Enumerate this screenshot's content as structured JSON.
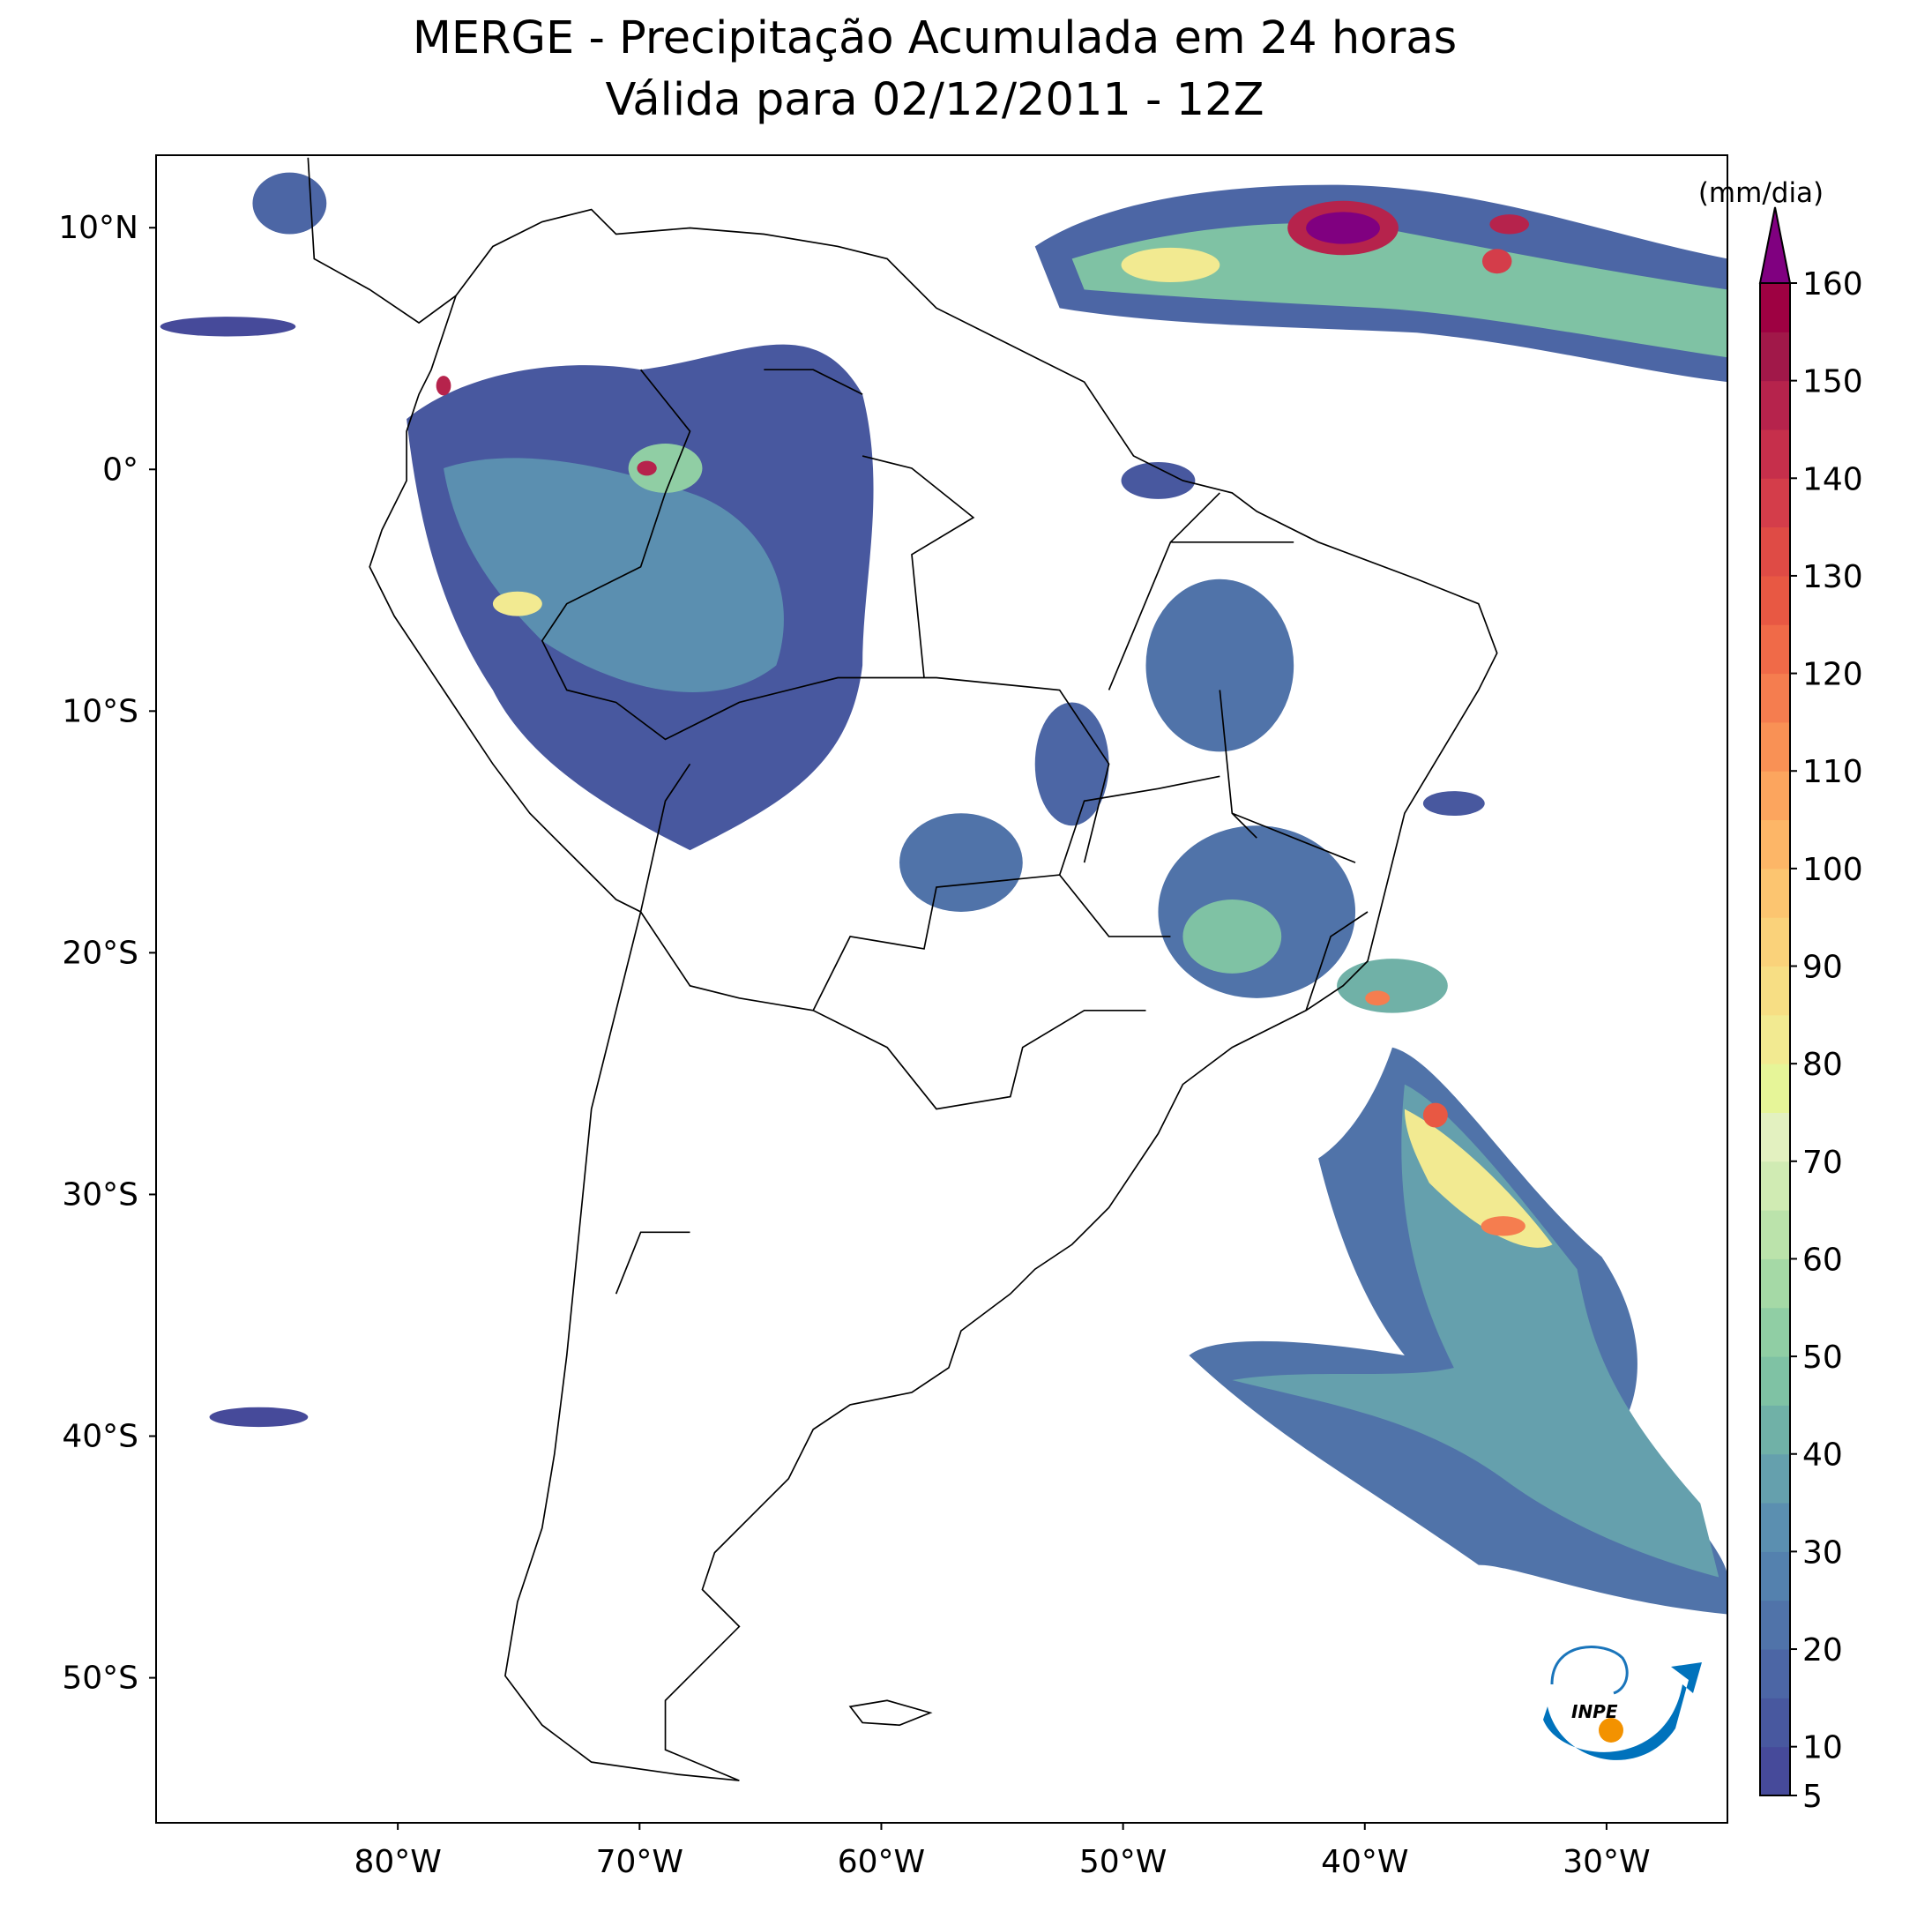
{
  "map": {
    "title": "MERGE - Precipitação Acumulada em 24 horas",
    "subtitle": "Válida para 02/12/2011 - 12Z",
    "lonlim": [
      -90,
      -25
    ],
    "latlim": [
      -56,
      13
    ],
    "lon_ticks": [
      {
        "value": -80,
        "label": "80°W"
      },
      {
        "value": -70,
        "label": "70°W"
      },
      {
        "value": -60,
        "label": "60°W"
      },
      {
        "value": -50,
        "label": "50°W"
      },
      {
        "value": -40,
        "label": "40°W"
      },
      {
        "value": -30,
        "label": "30°W"
      }
    ],
    "lat_ticks": [
      {
        "value": 10,
        "label": "10°N"
      },
      {
        "value": 0,
        "label": "0°"
      },
      {
        "value": -10,
        "label": "10°S"
      },
      {
        "value": -20,
        "label": "20°S"
      },
      {
        "value": -30,
        "label": "30°S"
      },
      {
        "value": -40,
        "label": "40°S"
      },
      {
        "value": -50,
        "label": "50°S"
      }
    ],
    "colorbar": {
      "unit": "(mm/dia)",
      "lim": [
        5,
        160
      ],
      "ticks": [
        5,
        10,
        20,
        30,
        40,
        50,
        60,
        70,
        80,
        90,
        100,
        110,
        120,
        130,
        140,
        150,
        160
      ],
      "colors": [
        "#464a9a",
        "#48589f",
        "#4c66a5",
        "#5073a9",
        "#5481ae",
        "#5b8fb0",
        "#65a0ad",
        "#70b1a7",
        "#7fc2a4",
        "#90cea4",
        "#a5d9a6",
        "#bbe3ab",
        "#d0ebb3",
        "#e3f1c0",
        "#e6f598",
        "#f2ea91",
        "#f7de84",
        "#fad27a",
        "#fcc570",
        "#fdb667",
        "#fca55e",
        "#f99155",
        "#f57d4f",
        "#f06a48",
        "#e85843",
        "#df4b45",
        "#d43d4a",
        "#c62f4b",
        "#b6234c",
        "#a11849",
        "#9e0142"
      ],
      "extend_color": "#800080"
    },
    "logo_text": "INPE"
  }
}
